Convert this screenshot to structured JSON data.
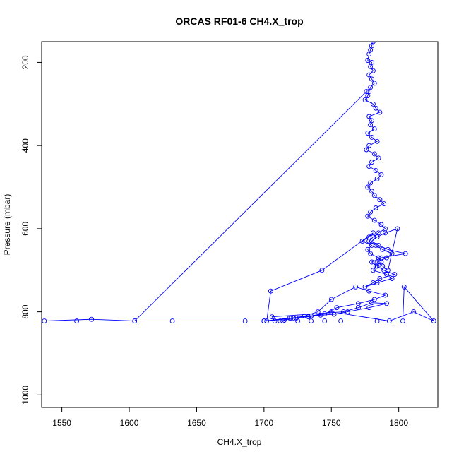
{
  "chart_data": {
    "type": "line",
    "title": "ORCAS RF01-6 CH4.X_trop",
    "xlabel": "CH4.X_trop",
    "ylabel": "Pressure (mbar)",
    "xlim": [
      1535,
      1829
    ],
    "ylim": [
      1030,
      150
    ],
    "y_reversed": true,
    "x_ticks": [
      1550,
      1600,
      1650,
      1700,
      1750,
      1800
    ],
    "y_ticks": [
      200,
      400,
      600,
      800,
      1000
    ],
    "grid": false,
    "legend": "none",
    "series_color": "#0000ff",
    "marker": "open-circle",
    "series": [
      {
        "x": [
          1781,
          1780,
          1779,
          1778,
          1777,
          1780,
          1779,
          1781,
          1778,
          1780,
          1782,
          1779,
          1778,
          1777,
          1775,
          1781,
          1783,
          1786,
          1778,
          1780,
          1779,
          1782,
          1777,
          1780,
          1784,
          1778,
          1776,
          1782,
          1785,
          1780,
          1778,
          1783,
          1787,
          1784,
          1779,
          1777,
          1780,
          1782,
          1786,
          1789,
          1783,
          1779,
          1777,
          1782,
          1787,
          1790,
          1785,
          1781,
          1778,
          1783,
          1788,
          1795,
          1791,
          1784,
          1788,
          1792,
          1799,
          1790,
          1784,
          1780,
          1785,
          1792,
          1805,
          1787,
          1780,
          1784,
          1789,
          1797,
          1786,
          1781,
          1775,
          1784,
          1795,
          1791,
          1781,
          1783,
          1787,
          1785,
          1779,
          1777,
          1780,
          1773,
          1778,
          1781,
          1743,
          1705,
          1702,
          1724,
          1745,
          1754,
          1770,
          1782,
          1790,
          1778,
          1768,
          1750,
          1740,
          1730,
          1722,
          1715,
          1712,
          1700,
          1719,
          1733,
          1742,
          1752,
          1762,
          1778,
          1791,
          1780,
          1770,
          1759,
          1706,
          1708,
          1725,
          1735,
          1745,
          1757,
          1784,
          1803,
          1804,
          1826,
          1811,
          1793,
          1750,
          1735,
          1720,
          1714,
          1700,
          1686,
          1632,
          1604,
          1561,
          1537,
          1572,
          1604,
          1776
        ],
        "y": [
          150,
          160,
          170,
          180,
          195,
          200,
          210,
          220,
          230,
          240,
          250,
          260,
          270,
          280,
          290,
          300,
          310,
          320,
          330,
          340,
          350,
          360,
          370,
          380,
          390,
          400,
          410,
          420,
          430,
          440,
          450,
          460,
          470,
          480,
          490,
          500,
          510,
          520,
          530,
          540,
          550,
          560,
          570,
          580,
          590,
          600,
          610,
          620,
          630,
          640,
          650,
          660,
          670,
          680,
          690,
          700,
          600,
          610,
          620,
          630,
          640,
          650,
          660,
          670,
          680,
          690,
          700,
          710,
          720,
          730,
          740,
          730,
          720,
          710,
          700,
          690,
          680,
          670,
          660,
          650,
          640,
          630,
          620,
          610,
          700,
          750,
          822,
          815,
          805,
          790,
          780,
          770,
          760,
          750,
          740,
          770,
          800,
          810,
          815,
          820,
          822,
          822,
          815,
          812,
          808,
          806,
          800,
          790,
          780,
          778,
          790,
          800,
          812,
          822,
          822,
          822,
          822,
          822,
          822,
          822,
          740,
          822,
          800,
          822,
          800,
          810,
          815,
          822,
          822,
          822,
          822,
          822,
          822,
          822,
          818,
          822,
          270
        ]
      }
    ]
  }
}
